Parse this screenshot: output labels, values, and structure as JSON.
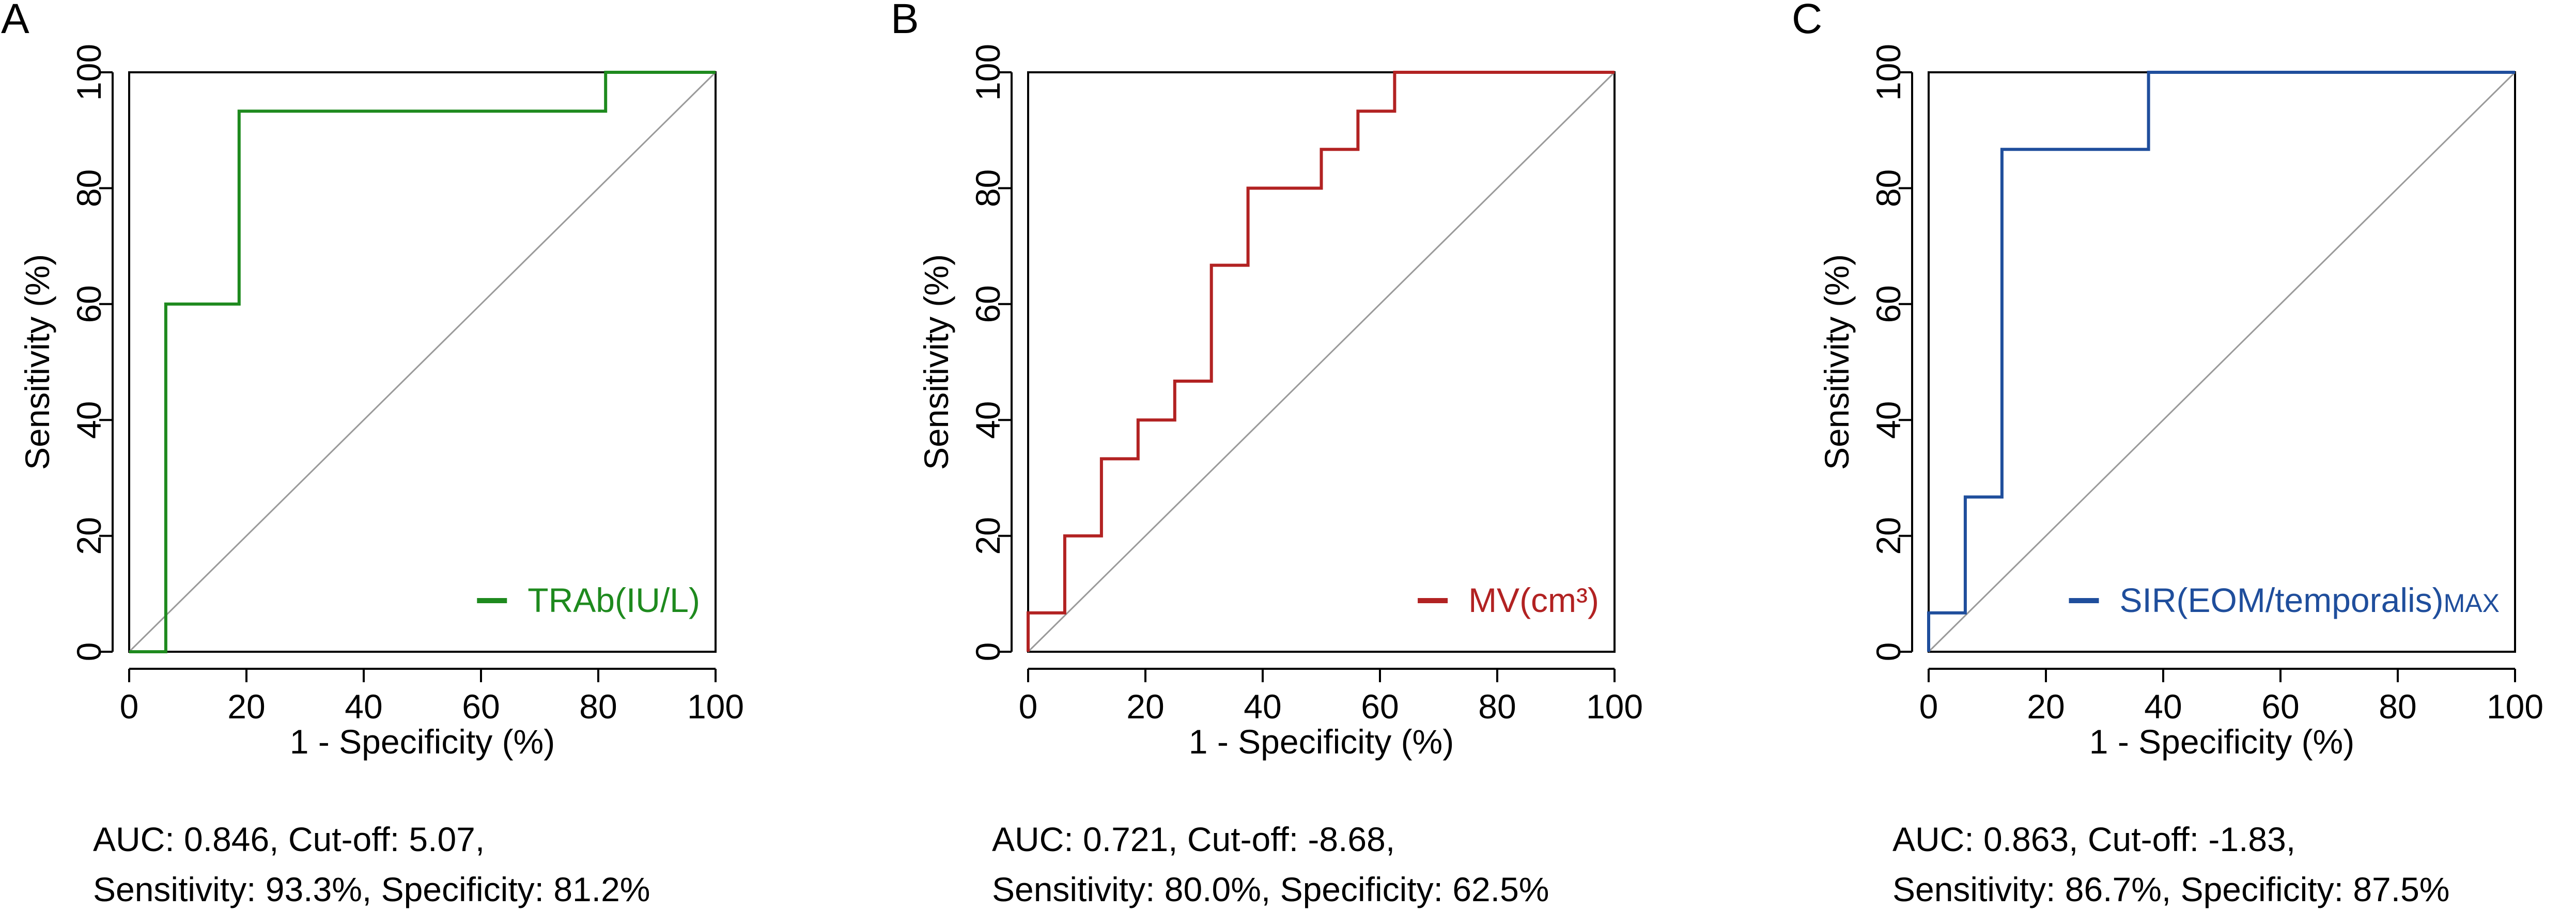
{
  "chart_data": [
    {
      "type": "line",
      "panel_letter": "A",
      "xlabel": "1 - Specificity (%)",
      "ylabel": "Sensitivity (%)",
      "xlim": [
        0,
        100
      ],
      "ylim": [
        0,
        100
      ],
      "xticks": [
        0,
        20,
        40,
        60,
        80,
        100
      ],
      "yticks": [
        0,
        20,
        40,
        60,
        80,
        100
      ],
      "grid": false,
      "diagonal_reference": true,
      "legend_position": "bottom-right",
      "series": [
        {
          "name": "TRAb(IU/L)",
          "color": "#1e8a1e",
          "x": [
            0,
            6.25,
            6.25,
            18.75,
            18.75,
            81.25,
            81.25,
            100
          ],
          "y": [
            0,
            0,
            60,
            60,
            93.3,
            93.3,
            100,
            100
          ]
        }
      ],
      "stats_line1": "AUC: 0.846, Cut-off: 5.07,",
      "stats_line2": "Sensitivity: 93.3%, Specificity: 81.2%"
    },
    {
      "type": "line",
      "panel_letter": "B",
      "xlabel": "1 - Specificity (%)",
      "ylabel": "Sensitivity (%)",
      "xlim": [
        0,
        100
      ],
      "ylim": [
        0,
        100
      ],
      "xticks": [
        0,
        20,
        40,
        60,
        80,
        100
      ],
      "yticks": [
        0,
        20,
        40,
        60,
        80,
        100
      ],
      "grid": false,
      "diagonal_reference": true,
      "legend_position": "bottom-right",
      "series": [
        {
          "name": "MV(cm³)",
          "color": "#b22222",
          "x": [
            0,
            0,
            6.25,
            6.25,
            12.5,
            12.5,
            18.75,
            18.75,
            25,
            25,
            31.25,
            31.25,
            37.5,
            37.5,
            50,
            50,
            56.25,
            56.25,
            62.5,
            62.5,
            100
          ],
          "y": [
            0,
            6.7,
            6.7,
            20,
            20,
            33.3,
            33.3,
            40,
            40,
            46.7,
            46.7,
            66.7,
            66.7,
            80,
            80,
            86.7,
            86.7,
            93.3,
            93.3,
            100,
            100
          ]
        }
      ],
      "stats_line1": "AUC: 0.721, Cut-off: -8.68,",
      "stats_line2": "Sensitivity: 80.0%, Specificity: 62.5%"
    },
    {
      "type": "line",
      "panel_letter": "C",
      "xlabel": "1 - Specificity (%)",
      "ylabel": "Sensitivity (%)",
      "xlim": [
        0,
        100
      ],
      "ylim": [
        0,
        100
      ],
      "xticks": [
        0,
        20,
        40,
        60,
        80,
        100
      ],
      "yticks": [
        0,
        20,
        40,
        60,
        80,
        100
      ],
      "grid": false,
      "diagonal_reference": true,
      "legend_position": "bottom-right",
      "series": [
        {
          "name": "SIR(EOM/temporalis)",
          "name_subscript": "MAX",
          "color": "#1f4e9c",
          "x": [
            0,
            0,
            6.25,
            6.25,
            12.5,
            12.5,
            37.5,
            37.5,
            100
          ],
          "y": [
            0,
            6.7,
            6.7,
            26.7,
            26.7,
            86.7,
            86.7,
            100,
            100
          ]
        }
      ],
      "stats_line1": "AUC: 0.863, Cut-off: -1.83,",
      "stats_line2": "Sensitivity: 86.7%, Specificity: 87.5%"
    }
  ]
}
